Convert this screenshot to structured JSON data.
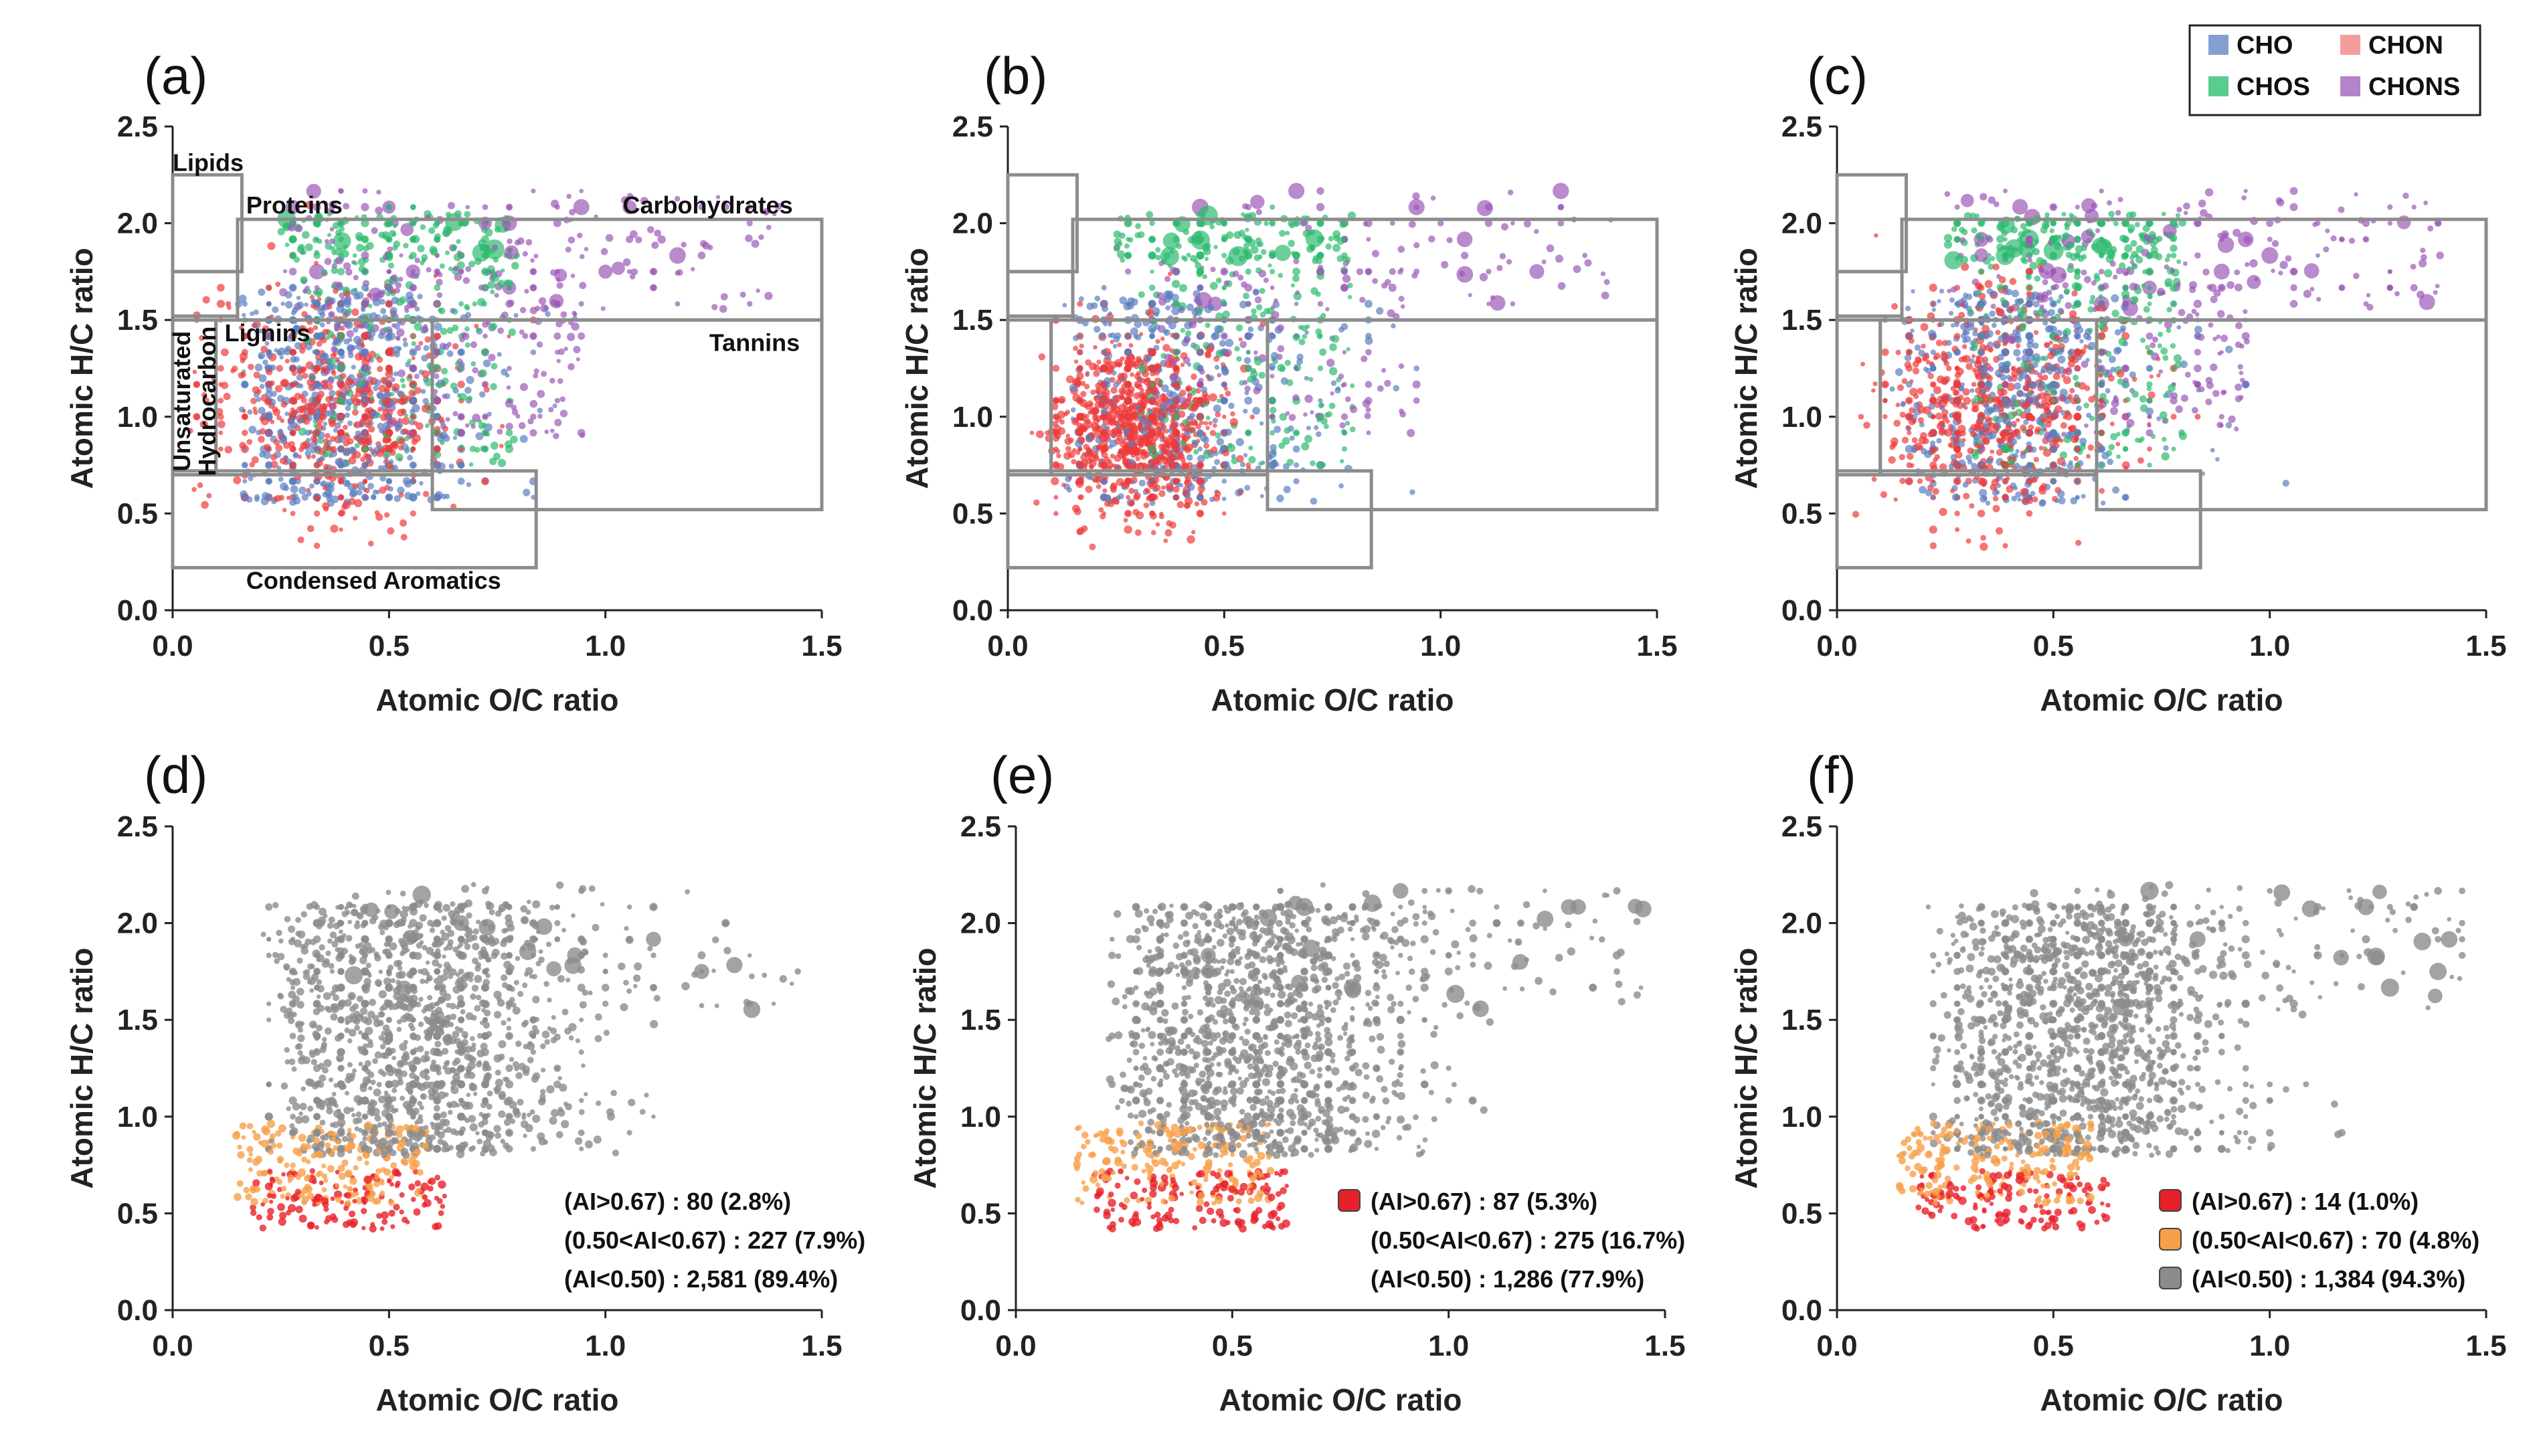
{
  "figure": {
    "legend": {
      "items": [
        {
          "label": "CHO",
          "color": "#6f8fc7"
        },
        {
          "label": "CHON",
          "color": "#f28c8c"
        },
        {
          "label": "CHOS",
          "color": "#3cc47c"
        },
        {
          "label": "CHONS",
          "color": "#a66fc0"
        }
      ]
    },
    "colors": {
      "CHO": "#5b7fc0",
      "CHON": "#ee3a3a",
      "CHOS": "#2dbb6f",
      "CHONS": "#9b59b6",
      "ai_high": "#e8202a",
      "ai_mid": "#f7a04a",
      "ai_low": "#8c8c8c",
      "region_box": "#8c8c8c",
      "axis": "#222222"
    }
  },
  "chart_data": [
    {
      "panel": "(a)",
      "type": "scatter",
      "xlabel": "Atomic O/C ratio",
      "ylabel": "Atomic H/C ratio",
      "xlim": [
        0,
        1.5
      ],
      "ylim": [
        0,
        2.5
      ],
      "xticks": [
        "0.0",
        "0.5",
        "1.0",
        "1.5"
      ],
      "yticks": [
        "0.0",
        "0.5",
        "1.0",
        "1.5",
        "2.0",
        "2.5"
      ],
      "color_mode": "formula_class",
      "region_labels": [
        "Lipids",
        "Proteins",
        "Carbohydrates",
        "Lignins",
        "Tannins",
        "Unsaturated",
        "Hydrocarbon",
        "Condensed Aromatics"
      ],
      "distribution": {
        "CHO": 0.32,
        "CHON": 0.3,
        "CHOS": 0.2,
        "CHONS": 0.18
      }
    },
    {
      "panel": "(b)",
      "type": "scatter",
      "xlabel": "Atomic O/C ratio",
      "ylabel": "Atomic H/C ratio",
      "xlim": [
        0,
        1.5
      ],
      "ylim": [
        0,
        2.5
      ],
      "xticks": [
        "0.0",
        "0.5",
        "1.0",
        "1.5"
      ],
      "yticks": [
        "0.0",
        "0.5",
        "1.0",
        "1.5",
        "2.0",
        "2.5"
      ],
      "color_mode": "formula_class",
      "distribution": {
        "CHO": 0.22,
        "CHON": 0.5,
        "CHOS": 0.18,
        "CHONS": 0.1
      }
    },
    {
      "panel": "(c)",
      "type": "scatter",
      "xlabel": "Atomic O/C ratio",
      "ylabel": "Atomic H/C ratio",
      "xlim": [
        0,
        1.5
      ],
      "ylim": [
        0,
        2.5
      ],
      "xticks": [
        "0.0",
        "0.5",
        "1.0",
        "1.5"
      ],
      "yticks": [
        "0.0",
        "0.5",
        "1.0",
        "1.5",
        "2.0",
        "2.5"
      ],
      "color_mode": "formula_class",
      "distribution": {
        "CHO": 0.28,
        "CHON": 0.34,
        "CHOS": 0.22,
        "CHONS": 0.16
      }
    },
    {
      "panel": "(d)",
      "type": "scatter",
      "xlabel": "Atomic O/C ratio",
      "ylabel": "Atomic H/C ratio",
      "xlim": [
        0,
        1.5
      ],
      "ylim": [
        0,
        2.5
      ],
      "xticks": [
        "0.0",
        "0.5",
        "1.0",
        "1.5"
      ],
      "yticks": [
        "0.0",
        "0.5",
        "1.0",
        "1.5",
        "2.0",
        "2.5"
      ],
      "color_mode": "aromaticity_index",
      "legend_swatches": false,
      "ai_classes": [
        {
          "label": "(AI>0.67) : 80 (2.8%)",
          "count": 80,
          "percent": 2.8
        },
        {
          "label": "(0.50<AI<0.67) : 227 (7.9%)",
          "count": 227,
          "percent": 7.9
        },
        {
          "label": "(AI<0.50) : 2,581 (89.4%)",
          "count": 2581,
          "percent": 89.4
        }
      ]
    },
    {
      "panel": "(e)",
      "type": "scatter",
      "xlabel": "Atomic O/C ratio",
      "ylabel": "Atomic H/C ratio",
      "xlim": [
        0,
        1.5
      ],
      "ylim": [
        0,
        2.5
      ],
      "xticks": [
        "0.0",
        "0.5",
        "1.0",
        "1.5"
      ],
      "yticks": [
        "0.0",
        "0.5",
        "1.0",
        "1.5",
        "2.0",
        "2.5"
      ],
      "color_mode": "aromaticity_index",
      "legend_swatches": "first",
      "ai_classes": [
        {
          "label": "(AI>0.67) : 87 (5.3%)",
          "count": 87,
          "percent": 5.3
        },
        {
          "label": "(0.50<AI<0.67) : 275 (16.7%)",
          "count": 275,
          "percent": 16.7
        },
        {
          "label": "(AI<0.50) : 1,286 (77.9%)",
          "count": 1286,
          "percent": 77.9
        }
      ]
    },
    {
      "panel": "(f)",
      "type": "scatter",
      "xlabel": "Atomic O/C ratio",
      "ylabel": "Atomic H/C ratio",
      "xlim": [
        0,
        1.5
      ],
      "ylim": [
        0,
        2.5
      ],
      "xticks": [
        "0.0",
        "0.5",
        "1.0",
        "1.5"
      ],
      "yticks": [
        "0.0",
        "0.5",
        "1.0",
        "1.5",
        "2.0",
        "2.5"
      ],
      "color_mode": "aromaticity_index",
      "legend_swatches": "all",
      "ai_classes": [
        {
          "label": "(AI>0.67) : 14 (1.0%)",
          "count": 14,
          "percent": 1.0
        },
        {
          "label": "(0.50<AI<0.67) : 70 (4.8%)",
          "count": 70,
          "percent": 4.8
        },
        {
          "label": "(AI<0.50) : 1,384 (94.3%)",
          "count": 1384,
          "percent": 94.3
        }
      ]
    }
  ]
}
